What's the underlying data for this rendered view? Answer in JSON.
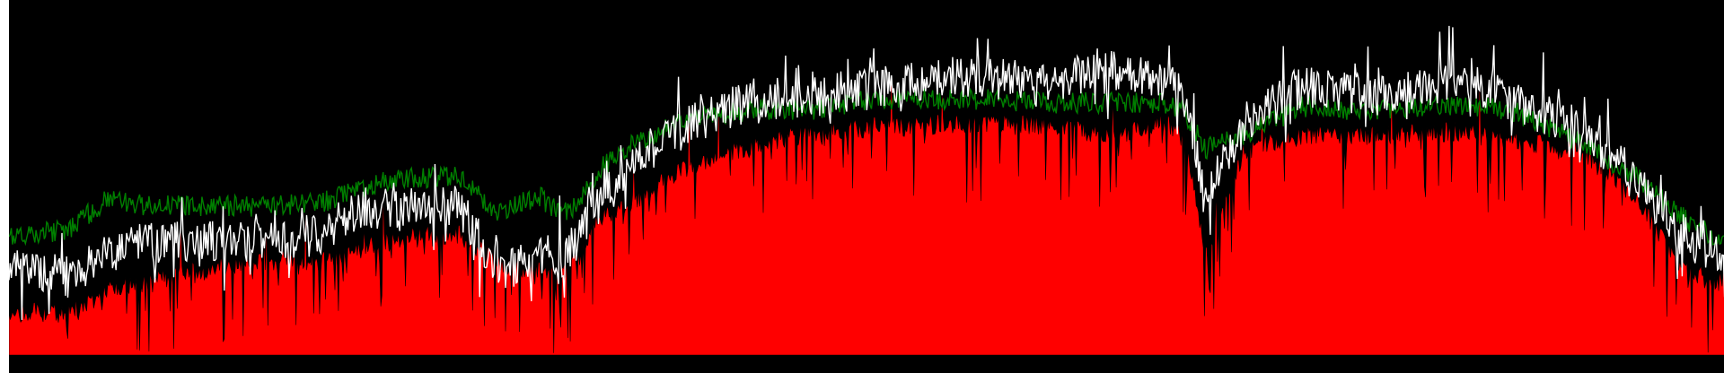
{
  "chart_data": {
    "type": "area",
    "title": "",
    "xlabel": "",
    "ylabel": "",
    "xlim": [
      0,
      1750
    ],
    "ylim": [
      0,
      100
    ],
    "grid": false,
    "legend": "none",
    "background": "#000000",
    "series": [
      {
        "kind": "spiky-area",
        "color": "#ff0000",
        "stroke": "#000000",
        "x": [
          0,
          60,
          100,
          140,
          200,
          260,
          320,
          360,
          400,
          460,
          500,
          540,
          560,
          580,
          600,
          640,
          700,
          760,
          820,
          880,
          940,
          1000,
          1060,
          1100,
          1140,
          1180,
          1200,
          1220,
          1260,
          1320,
          1380,
          1440,
          1480,
          1500,
          1540,
          1600,
          1660,
          1700,
          1740,
          1750
        ],
        "values": [
          12,
          12,
          18,
          21,
          24,
          27,
          26,
          30,
          33,
          34,
          26,
          24,
          22,
          28,
          38,
          44,
          54,
          59,
          63,
          64,
          65,
          65,
          65,
          63,
          63,
          66,
          60,
          28,
          58,
          62,
          62,
          63,
          63,
          62,
          60,
          58,
          44,
          26,
          20,
          22
        ]
      },
      {
        "kind": "noisy-line",
        "color": "#008000",
        "x": [
          0,
          60,
          100,
          140,
          200,
          260,
          320,
          360,
          400,
          460,
          500,
          540,
          560,
          580,
          600,
          640,
          700,
          760,
          820,
          880,
          940,
          1000,
          1060,
          1100,
          1140,
          1180,
          1200,
          1220,
          1260,
          1320,
          1380,
          1440,
          1480,
          1500,
          1540,
          1600,
          1660,
          1700,
          1740,
          1750
        ],
        "values": [
          34,
          35,
          44,
          42,
          42,
          42,
          43,
          47,
          50,
          50,
          40,
          45,
          40,
          42,
          52,
          60,
          67,
          69,
          69,
          72,
          72,
          72,
          71,
          71,
          71,
          71,
          68,
          58,
          62,
          70,
          69,
          70,
          70,
          70,
          68,
          60,
          50,
          40,
          33,
          32
        ]
      },
      {
        "kind": "noisy-line",
        "color": "#ffffff",
        "x": [
          0,
          60,
          100,
          140,
          200,
          260,
          320,
          360,
          400,
          460,
          500,
          540,
          560,
          580,
          600,
          640,
          700,
          760,
          820,
          880,
          940,
          1000,
          1060,
          1100,
          1140,
          1180,
          1200,
          1220,
          1260,
          1320,
          1380,
          1440,
          1480,
          1500,
          1540,
          1600,
          1660,
          1700,
          1740,
          1750
        ],
        "values": [
          25,
          22,
          28,
          32,
          32,
          32,
          34,
          42,
          40,
          42,
          22,
          28,
          25,
          33,
          45,
          55,
          66,
          72,
          73,
          75,
          78,
          78,
          76,
          79,
          80,
          77,
          72,
          45,
          65,
          76,
          73,
          75,
          78,
          76,
          71,
          64,
          50,
          35,
          28,
          26
        ]
      }
    ]
  }
}
